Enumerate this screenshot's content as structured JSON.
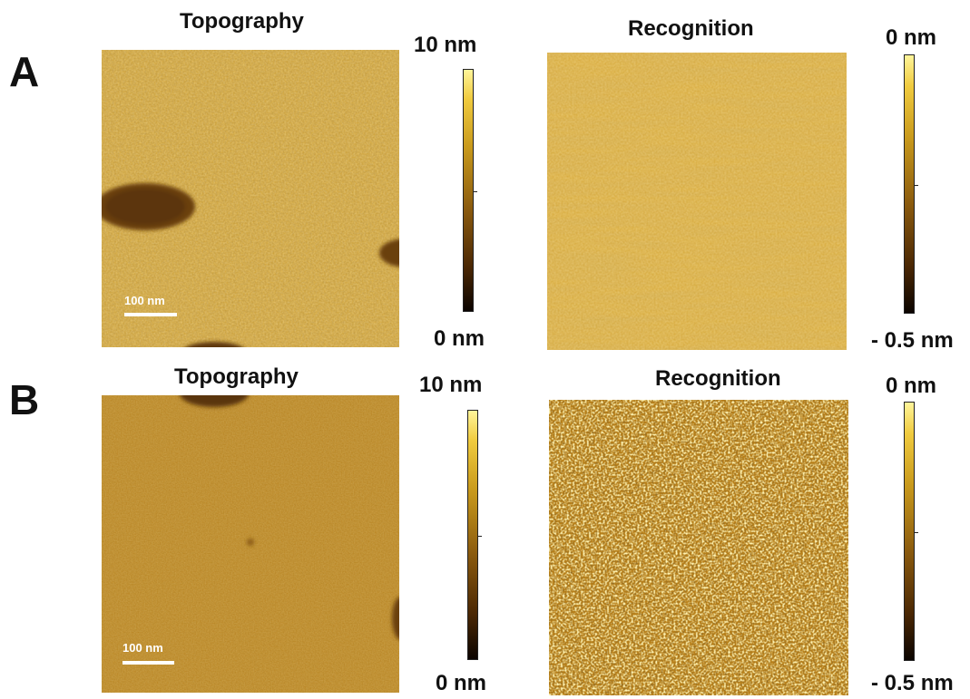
{
  "panels": [
    {
      "letter": "A",
      "topography": {
        "title": "Topography",
        "scale_bar": "100 nm",
        "colorbar_max": "10 nm",
        "colorbar_min": "0 nm",
        "base_color": "#d2a53a"
      },
      "recognition": {
        "title": "Recognition",
        "colorbar_max": "0 nm",
        "colorbar_min": "- 0.5 nm",
        "base_color": "#d8ab3e"
      }
    },
    {
      "letter": "B",
      "topography": {
        "title": "Topography",
        "scale_bar": "100 nm",
        "colorbar_max": "10 nm",
        "colorbar_min": "0 nm",
        "base_color": "#b98421"
      },
      "recognition": {
        "title": "Recognition",
        "colorbar_max": "0 nm",
        "colorbar_min": "- 0.5 nm",
        "base_color": "#b98019"
      }
    }
  ]
}
